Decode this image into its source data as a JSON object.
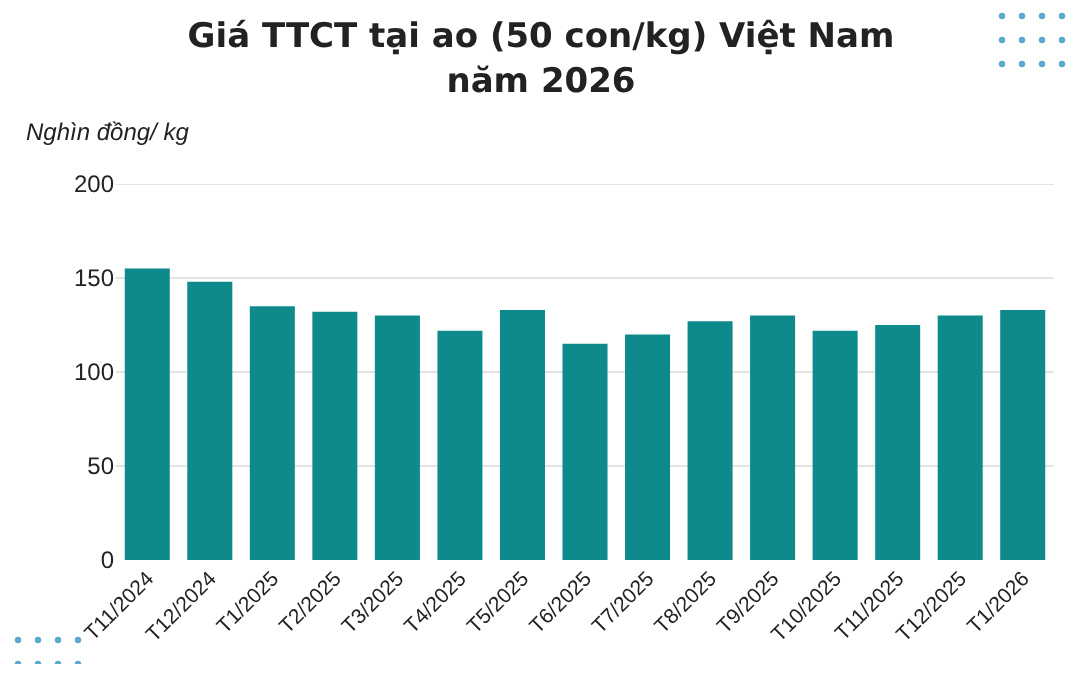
{
  "chart_data": {
    "type": "bar",
    "title": "Giá TTCT tại ao (50 con/kg) Việt Nam\nnăm 2026",
    "ylabel": "Nghìn đồng/ kg",
    "categories": [
      "T11/2024",
      "T12/2024",
      "T1/2025",
      "T2/2025",
      "T3/2025",
      "T4/2025",
      "T5/2025",
      "T6/2025",
      "T7/2025",
      "T8/2025",
      "T9/2025",
      "T10/2025",
      "T11/2025",
      "T12/2025",
      "T1/2026"
    ],
    "values": [
      155,
      148,
      135,
      132,
      130,
      122,
      133,
      115,
      120,
      127,
      130,
      122,
      125,
      130,
      133
    ],
    "color": "#0e8a8c",
    "ylim": [
      0,
      200
    ],
    "yticks": [
      0,
      50,
      100,
      150,
      200
    ],
    "grid": "y",
    "legend": false
  }
}
